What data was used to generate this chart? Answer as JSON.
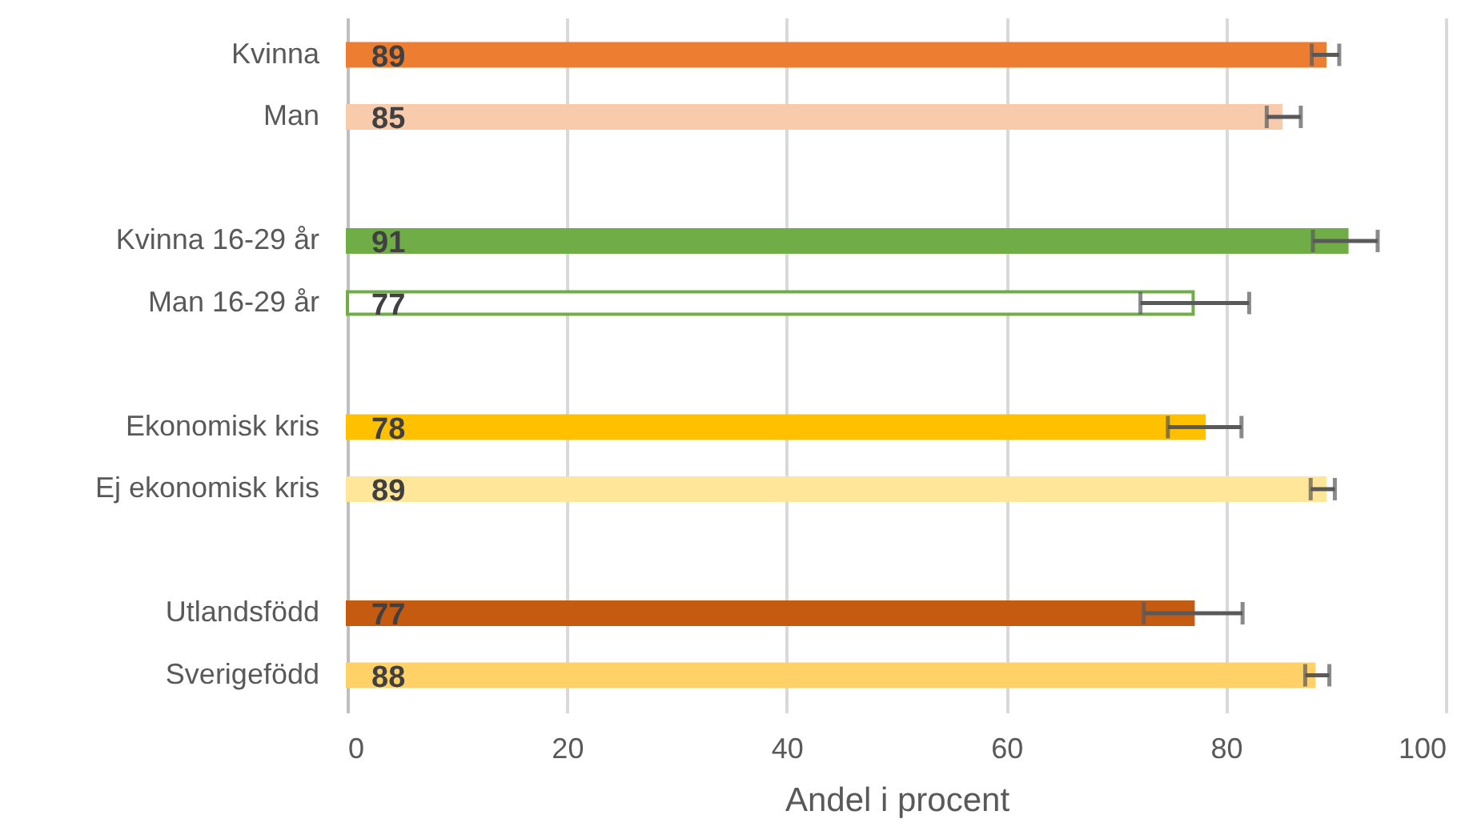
{
  "chart_data": {
    "type": "bar",
    "orientation": "horizontal",
    "categories": [
      "Kvinna",
      "Man",
      null,
      "Kvinna 16-29 år",
      "Man 16-29 år",
      null,
      "Ekonomisk kris",
      "Ej ekonomisk kris",
      null,
      "Utlandsfödd",
      "Sverigefödd"
    ],
    "values": [
      89,
      85,
      null,
      91,
      77,
      null,
      78,
      89,
      null,
      77,
      88
    ],
    "colors": [
      "#ed7d31",
      "#f8cbad",
      null,
      "#70ad47",
      "#ffffff",
      null,
      "#ffc000",
      "#ffe699",
      null,
      "#c55a11",
      "#ffd166"
    ],
    "errors": [
      [
        87.8,
        90.3
      ],
      [
        83.7,
        86.8
      ],
      null,
      [
        87.9,
        93.8
      ],
      [
        72.2,
        82.1
      ],
      null,
      [
        74.7,
        81.4
      ],
      [
        87.7,
        89.9
      ],
      null,
      [
        72.5,
        81.5
      ],
      [
        87.2,
        89.4
      ]
    ],
    "data_labels": true,
    "xlabel": "Andel i procent",
    "xlim": [
      0,
      100
    ],
    "xticks": [
      0,
      20,
      40,
      60,
      80,
      100
    ],
    "grid": "x"
  }
}
